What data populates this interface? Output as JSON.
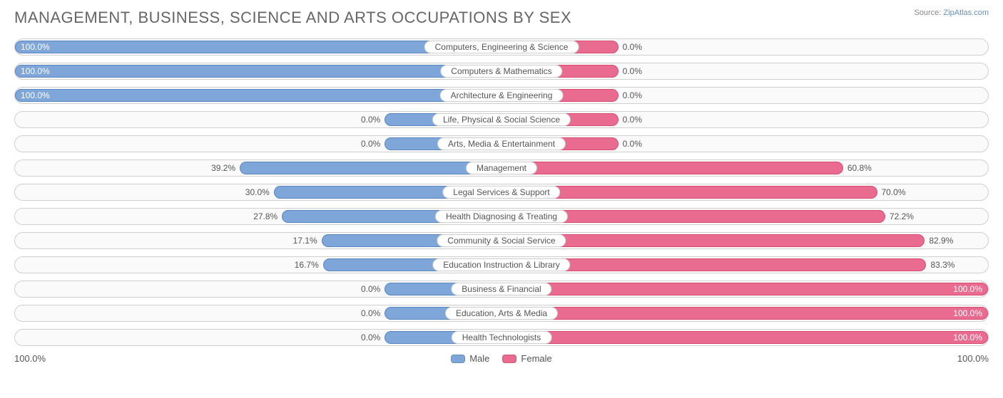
{
  "title": "MANAGEMENT, BUSINESS, SCIENCE AND ARTS OCCUPATIONS BY SEX",
  "source_label": "Source:",
  "source_value": "ZipAtlas.com",
  "chart": {
    "type": "diverging-bar",
    "male_color": "#7ea6d9",
    "male_border": "#5a85bd",
    "female_color": "#e96b8f",
    "female_border": "#d94a73",
    "track_border": "#cfcfcf",
    "track_bg": "#fafafa",
    "text_color": "#555555",
    "min_bar_pct": 12,
    "rows": [
      {
        "category": "Computers, Engineering & Science",
        "male": 100.0,
        "female": 0.0
      },
      {
        "category": "Computers & Mathematics",
        "male": 100.0,
        "female": 0.0
      },
      {
        "category": "Architecture & Engineering",
        "male": 100.0,
        "female": 0.0
      },
      {
        "category": "Life, Physical & Social Science",
        "male": 0.0,
        "female": 0.0
      },
      {
        "category": "Arts, Media & Entertainment",
        "male": 0.0,
        "female": 0.0
      },
      {
        "category": "Management",
        "male": 39.2,
        "female": 60.8
      },
      {
        "category": "Legal Services & Support",
        "male": 30.0,
        "female": 70.0
      },
      {
        "category": "Health Diagnosing & Treating",
        "male": 27.8,
        "female": 72.2
      },
      {
        "category": "Community & Social Service",
        "male": 17.1,
        "female": 82.9
      },
      {
        "category": "Education Instruction & Library",
        "male": 16.7,
        "female": 83.3
      },
      {
        "category": "Business & Financial",
        "male": 0.0,
        "female": 100.0
      },
      {
        "category": "Education, Arts & Media",
        "male": 0.0,
        "female": 100.0
      },
      {
        "category": "Health Technologists",
        "male": 0.0,
        "female": 100.0
      }
    ]
  },
  "axis": {
    "left": "100.0%",
    "right": "100.0%"
  },
  "legend": {
    "male": "Male",
    "female": "Female"
  }
}
